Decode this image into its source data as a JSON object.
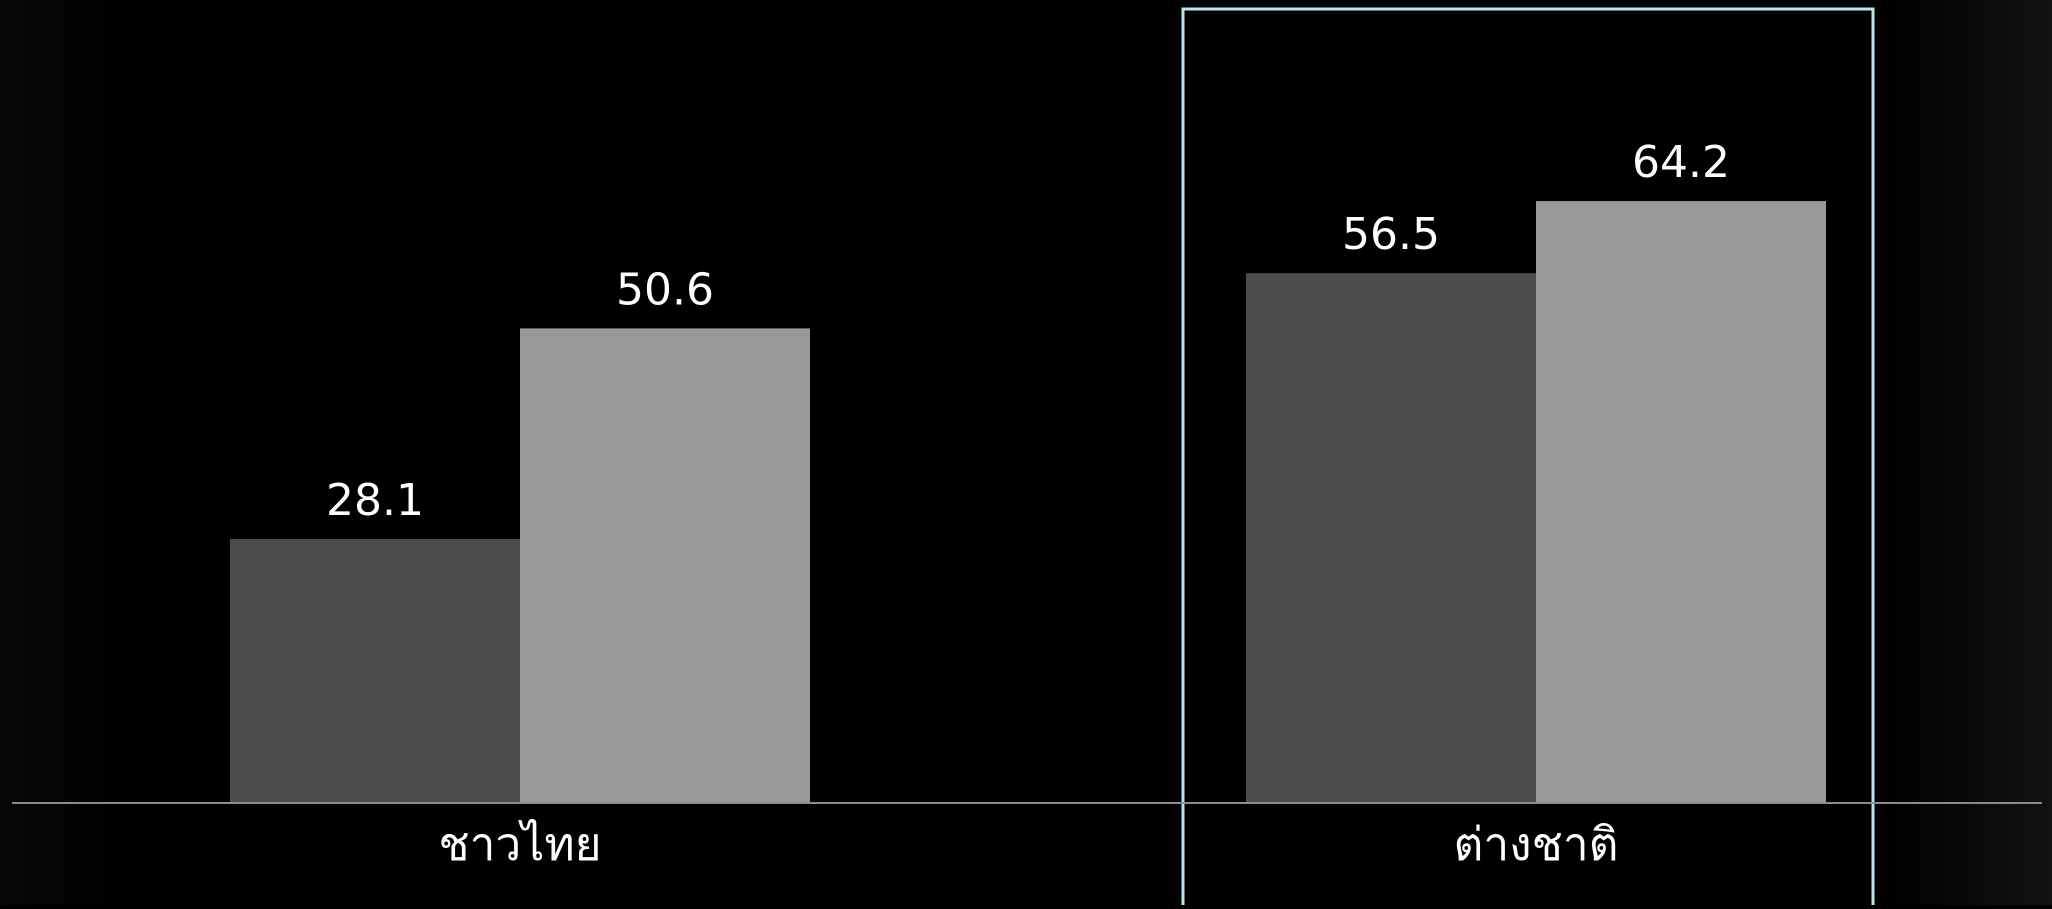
{
  "chart_data": {
    "type": "bar",
    "categories": [
      "ชาวไทย",
      "ต่างชาติ"
    ],
    "series": [
      {
        "values": [
          28.1,
          56.5
        ],
        "color": "#4d4d4d"
      },
      {
        "values": [
          50.6,
          64.2
        ],
        "color": "#999999"
      }
    ],
    "data_labels": [
      [
        "28.1",
        "56.5"
      ],
      [
        "50.6",
        "64.2"
      ]
    ],
    "highlighted_category": "ต่างชาติ",
    "highlight_color": "#b9e6ec",
    "axis_color": "#8a8a8a",
    "label_color": "#ffffff",
    "ylim": [
      0,
      80
    ],
    "grid": false,
    "legend": "none"
  }
}
